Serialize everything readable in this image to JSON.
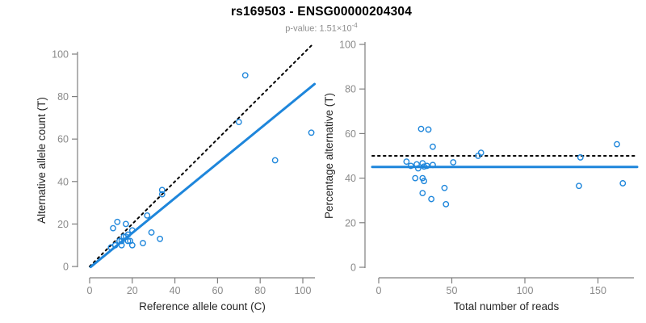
{
  "header": {
    "title": "rs169503 - ENSG00000204304",
    "pvalue_prefix": "p-value: ",
    "pvalue_base": "1.51×10",
    "pvalue_exponent": "-4"
  },
  "colors": {
    "point_blue": "#1e86db",
    "line_blue": "#1e86db",
    "dotted_black": "#000000",
    "axis_gray": "#7f7f7f",
    "tick_label_gray": "#8a8a8a",
    "axis_title_color": "#262626",
    "title_color": "#000000",
    "subtitle_gray": "#8e8e8e"
  },
  "chart_data": [
    {
      "type": "scatter",
      "panel": "left",
      "xlabel": "Reference allele count (C)",
      "ylabel": "Alternative allele count (T)",
      "xlim": [
        0,
        105
      ],
      "ylim": [
        0,
        105
      ],
      "xticks": [
        0,
        20,
        40,
        60,
        80,
        100
      ],
      "yticks": [
        0,
        20,
        40,
        60,
        80,
        100
      ],
      "grid": false,
      "legend": "none",
      "marker": "open-circle",
      "points": [
        [
          11,
          18
        ],
        [
          13,
          21
        ],
        [
          17,
          20
        ],
        [
          34,
          36
        ],
        [
          34,
          34
        ],
        [
          73,
          90
        ],
        [
          70,
          68
        ],
        [
          10,
          9
        ],
        [
          12,
          10
        ],
        [
          14,
          12
        ],
        [
          16,
          14
        ],
        [
          17,
          14
        ],
        [
          18,
          15
        ],
        [
          20,
          17
        ],
        [
          27,
          24
        ],
        [
          15,
          12
        ],
        [
          15,
          10
        ],
        [
          18,
          12
        ],
        [
          19,
          12
        ],
        [
          20,
          10
        ],
        [
          25,
          11
        ],
        [
          29,
          16
        ],
        [
          33,
          13
        ],
        [
          87,
          50
        ],
        [
          104,
          63
        ]
      ],
      "lines": [
        {
          "name": "identity-line",
          "style": "dotted",
          "color": "#000000",
          "x1": 0,
          "y1": 0,
          "x2": 105,
          "y2": 105
        },
        {
          "name": "regression-line",
          "style": "solid",
          "color": "#1e86db",
          "x1": 0.5,
          "y1": -0.2,
          "x2": 105.5,
          "y2": 85.9
        }
      ]
    },
    {
      "type": "scatter",
      "panel": "right",
      "xlabel": "Total number of reads",
      "ylabel": "Percentage alternative (T)",
      "xlim": [
        0,
        175
      ],
      "ylim": [
        0,
        100
      ],
      "xticks": [
        0,
        50,
        100,
        150
      ],
      "yticks": [
        0,
        20,
        40,
        60,
        80,
        100
      ],
      "grid": false,
      "legend": "none",
      "marker": "open-circle",
      "points": [
        [
          29,
          62.1
        ],
        [
          34,
          61.8
        ],
        [
          37,
          54.1
        ],
        [
          70,
          51.4
        ],
        [
          68,
          50.0
        ],
        [
          163,
          55.2
        ],
        [
          138,
          49.3
        ],
        [
          19,
          47.4
        ],
        [
          22,
          45.5
        ],
        [
          26,
          46.2
        ],
        [
          30,
          46.7
        ],
        [
          31,
          45.2
        ],
        [
          33,
          45.5
        ],
        [
          37,
          45.9
        ],
        [
          51,
          47.1
        ],
        [
          27,
          44.4
        ],
        [
          25,
          40.0
        ],
        [
          30,
          40.0
        ],
        [
          31,
          38.7
        ],
        [
          30,
          33.3
        ],
        [
          36,
          30.6
        ],
        [
          45,
          35.6
        ],
        [
          46,
          28.3
        ],
        [
          137,
          36.5
        ],
        [
          167,
          37.7
        ]
      ],
      "lines": [
        {
          "name": "expected-50pct-line",
          "style": "dotted",
          "color": "#000000",
          "y": 50
        },
        {
          "name": "mean-percentage-line",
          "style": "solid",
          "color": "#1e86db",
          "y": 45
        }
      ]
    }
  ]
}
